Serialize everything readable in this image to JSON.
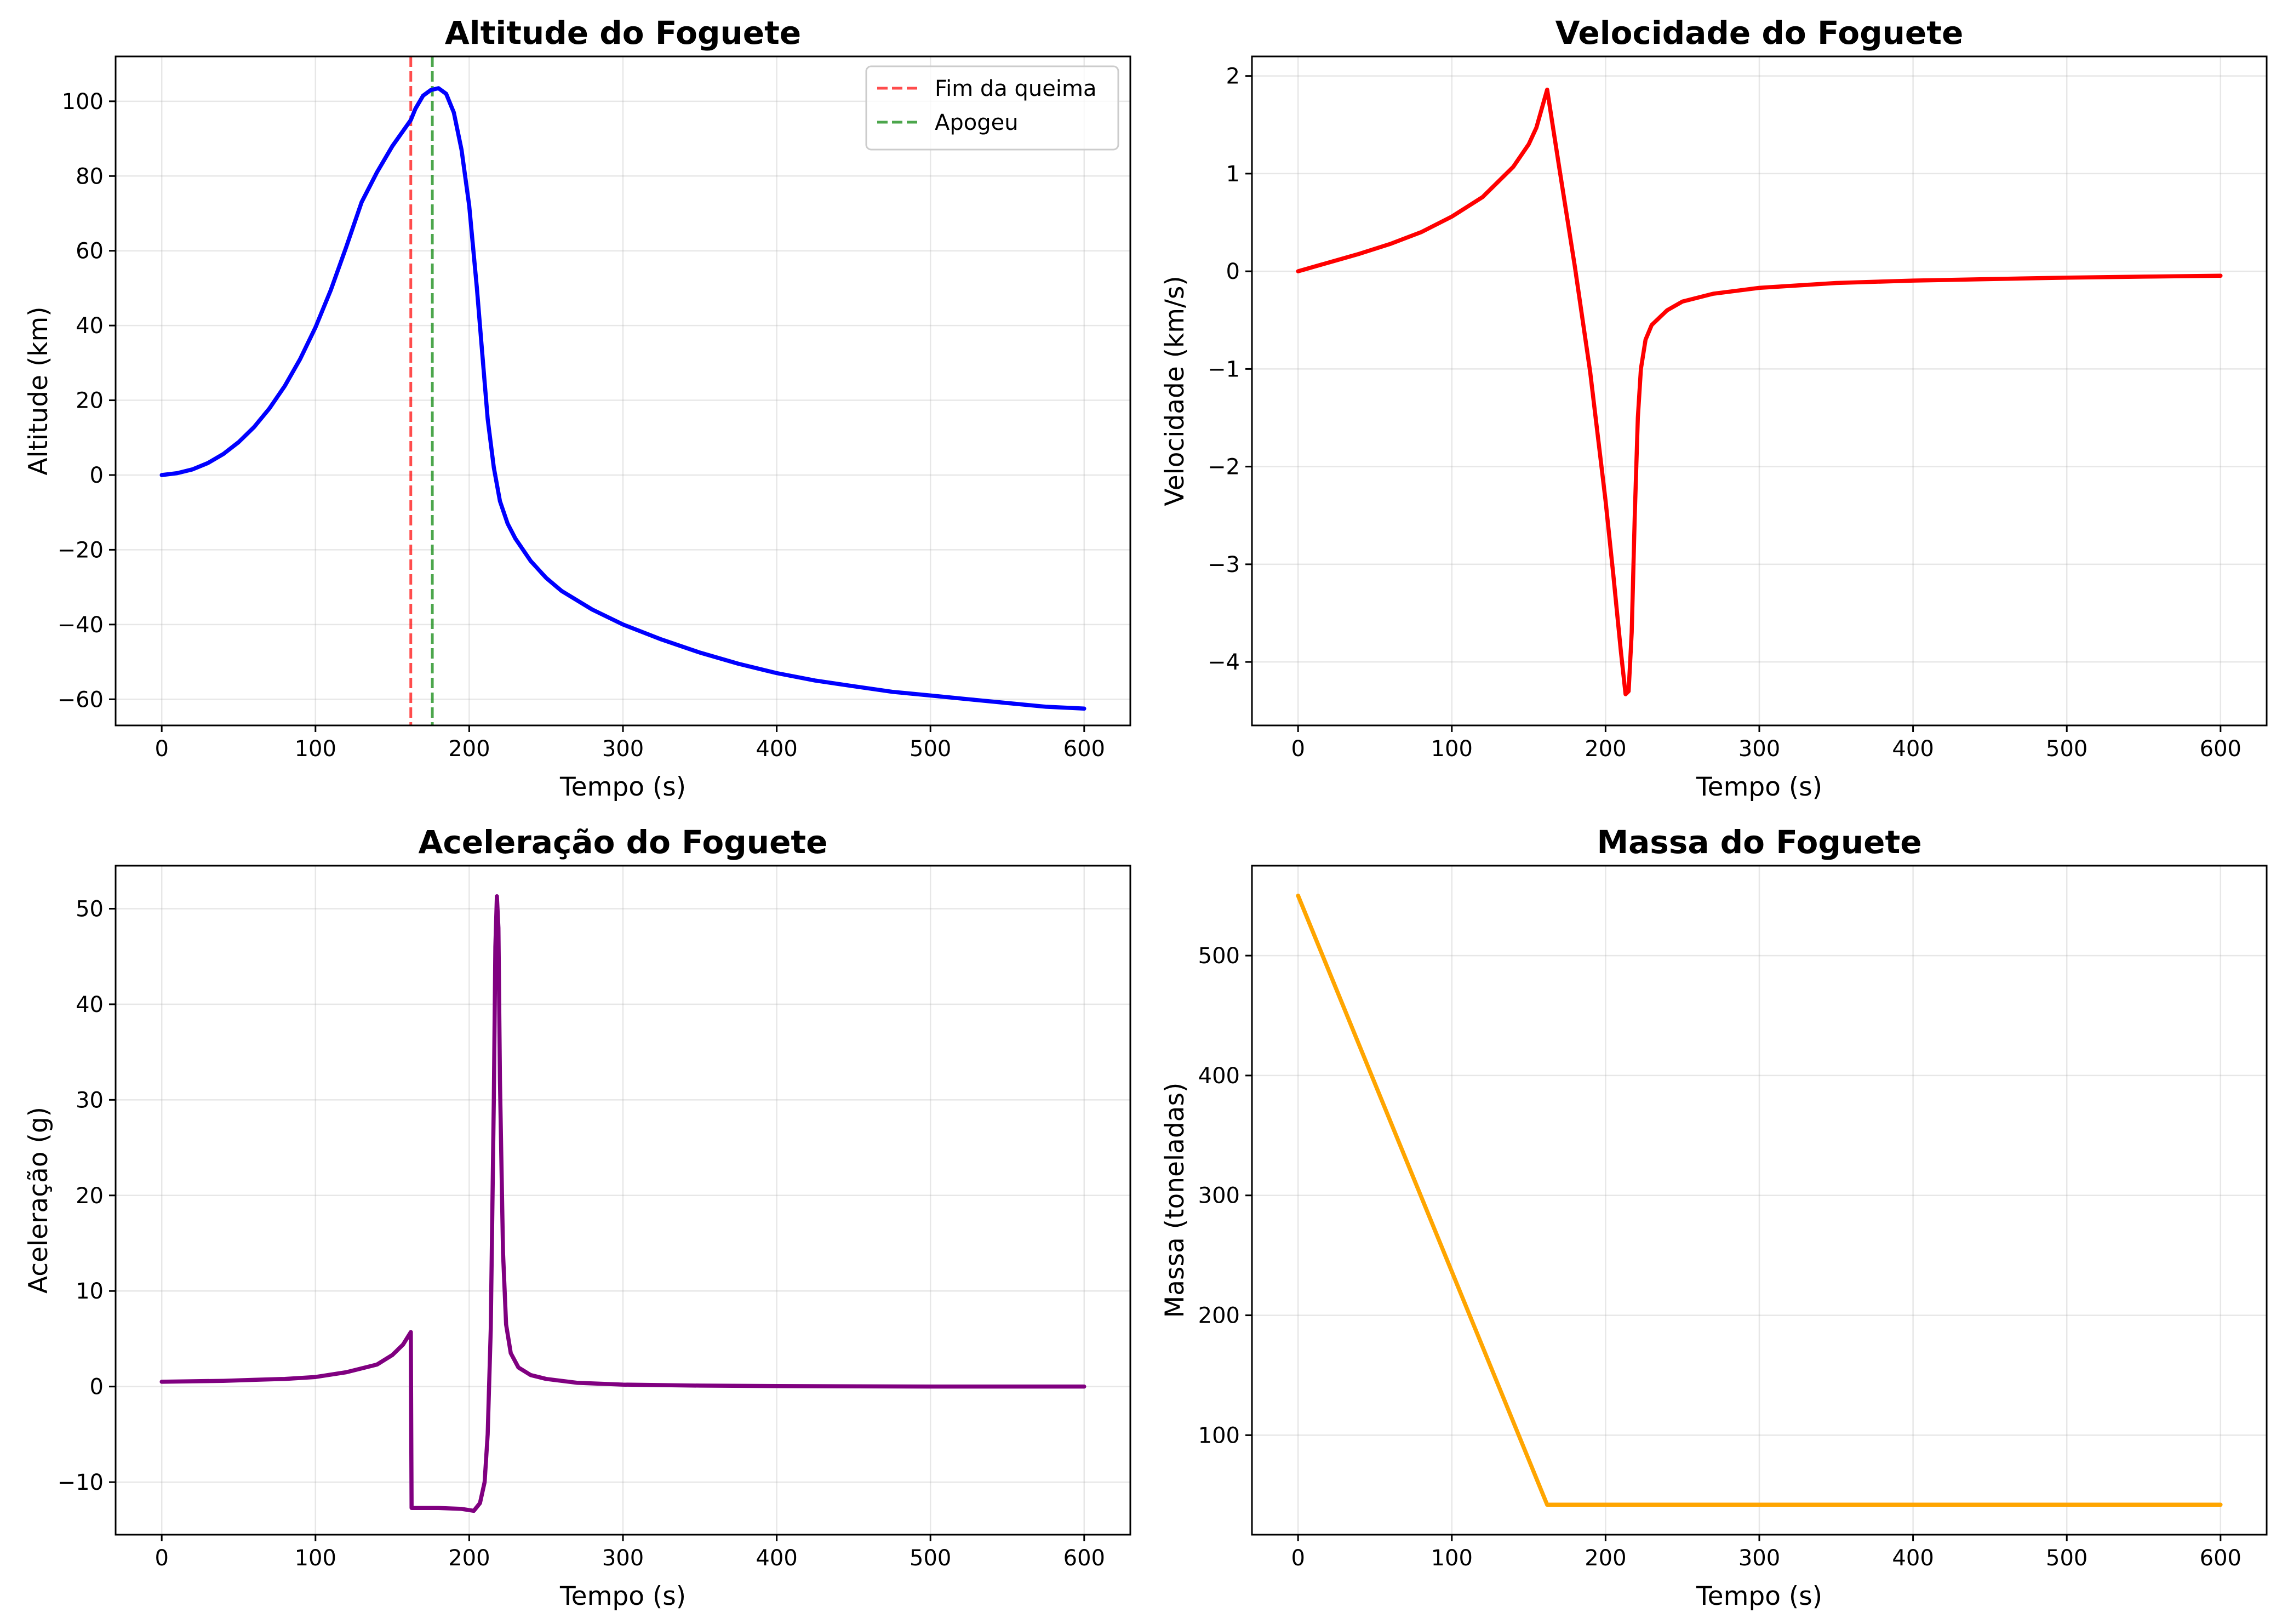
{
  "chart_data": [
    {
      "type": "line",
      "title": "Altitude do Foguete",
      "xlabel": "Tempo (s)",
      "ylabel": "Altitude (km)",
      "xlim": [
        -30,
        630
      ],
      "ylim": [
        -67,
        112
      ],
      "xticks": [
        0,
        100,
        200,
        300,
        400,
        500,
        600
      ],
      "xtick_labels": [
        "0",
        "100",
        "200",
        "300",
        "400",
        "500",
        "600"
      ],
      "yticks": [
        -60,
        -40,
        -20,
        0,
        20,
        40,
        60,
        80,
        100
      ],
      "ytick_labels": [
        "−60",
        "−40",
        "−20",
        "0",
        "20",
        "40",
        "60",
        "80",
        "100"
      ],
      "grid": true,
      "legend": "upper right",
      "series": [
        {
          "color": "#0000ff",
          "x": [
            0,
            10,
            20,
            30,
            40,
            50,
            60,
            70,
            80,
            90,
            100,
            110,
            120,
            130,
            140,
            150,
            162,
            165,
            170,
            175,
            180,
            185,
            190,
            195,
            200,
            205,
            208,
            212,
            216,
            220,
            225,
            230,
            240,
            250,
            260,
            280,
            300,
            325,
            350,
            375,
            400,
            425,
            450,
            475,
            500,
            525,
            550,
            575,
            600
          ],
          "y": [
            0,
            0.5,
            1.5,
            3.2,
            5.6,
            8.8,
            12.8,
            17.8,
            23.8,
            31,
            39.5,
            49.5,
            61,
            73,
            81,
            88,
            95,
            98,
            101.5,
            103,
            103.5,
            102,
            97,
            87,
            72,
            50,
            35,
            15,
            2,
            -7,
            -13,
            -17,
            -23,
            -27.5,
            -31,
            -36,
            -40,
            -44,
            -47.5,
            -50.5,
            -53,
            -55,
            -56.5,
            -58,
            -59,
            -60,
            -61,
            -62,
            -62.5
          ]
        }
      ],
      "vlines": [
        {
          "x": 162,
          "color": "#ff0000",
          "label": "Fim da queima"
        },
        {
          "x": 176,
          "color": "#008000",
          "label": "Apogeu"
        }
      ]
    },
    {
      "type": "line",
      "title": "Velocidade do Foguete",
      "xlabel": "Tempo (s)",
      "ylabel": "Velocidade (km/s)",
      "xlim": [
        -30,
        630
      ],
      "ylim": [
        -4.65,
        2.2
      ],
      "xticks": [
        0,
        100,
        200,
        300,
        400,
        500,
        600
      ],
      "xtick_labels": [
        "0",
        "100",
        "200",
        "300",
        "400",
        "500",
        "600"
      ],
      "yticks": [
        -4,
        -3,
        -2,
        -1,
        0,
        1,
        2
      ],
      "ytick_labels": [
        "−4",
        "−3",
        "−2",
        "−1",
        "0",
        "1",
        "2"
      ],
      "grid": true,
      "series": [
        {
          "color": "#ff0000",
          "x": [
            0,
            20,
            40,
            60,
            80,
            100,
            120,
            140,
            150,
            155,
            162,
            170,
            180,
            190,
            200,
            205,
            210,
            213,
            215,
            217,
            219,
            221,
            223,
            226,
            230,
            240,
            250,
            270,
            300,
            350,
            400,
            450,
            500,
            550,
            600
          ],
          "y": [
            0,
            0.09,
            0.18,
            0.28,
            0.4,
            0.56,
            0.76,
            1.07,
            1.3,
            1.47,
            1.86,
            1.05,
            0.05,
            -1.03,
            -2.35,
            -3.1,
            -3.9,
            -4.33,
            -4.3,
            -3.7,
            -2.5,
            -1.5,
            -1.0,
            -0.7,
            -0.55,
            -0.4,
            -0.31,
            -0.23,
            -0.17,
            -0.12,
            -0.095,
            -0.08,
            -0.065,
            -0.055,
            -0.045
          ]
        }
      ]
    },
    {
      "type": "line",
      "title": "Aceleração do Foguete",
      "xlabel": "Tempo (s)",
      "ylabel": "Aceleração (g)",
      "xlim": [
        -30,
        630
      ],
      "ylim": [
        -15.5,
        54.5
      ],
      "xticks": [
        0,
        100,
        200,
        300,
        400,
        500,
        600
      ],
      "xtick_labels": [
        "0",
        "100",
        "200",
        "300",
        "400",
        "500",
        "600"
      ],
      "yticks": [
        -10,
        0,
        10,
        20,
        30,
        40,
        50
      ],
      "ytick_labels": [
        "−10",
        "0",
        "10",
        "20",
        "30",
        "40",
        "50"
      ],
      "grid": true,
      "series": [
        {
          "color": "#800080",
          "x": [
            0,
            20,
            40,
            60,
            80,
            100,
            120,
            140,
            150,
            157,
            162,
            162.5,
            170,
            180,
            195,
            203,
            207,
            210,
            212,
            214,
            216,
            217,
            218,
            219,
            220,
            222,
            224,
            227,
            232,
            240,
            250,
            270,
            300,
            350,
            400,
            500,
            600
          ],
          "y": [
            0.5,
            0.55,
            0.6,
            0.7,
            0.8,
            1.0,
            1.5,
            2.3,
            3.3,
            4.4,
            5.7,
            -12.7,
            -12.7,
            -12.7,
            -12.8,
            -13.0,
            -12.2,
            -10.0,
            -5.0,
            6.0,
            30.0,
            46.0,
            51.3,
            48.0,
            32.0,
            14.0,
            6.5,
            3.5,
            2.0,
            1.2,
            0.8,
            0.4,
            0.2,
            0.1,
            0.05,
            0.0,
            0.0
          ]
        }
      ]
    },
    {
      "type": "line",
      "title": "Massa do Foguete",
      "xlabel": "Tempo (s)",
      "ylabel": "Massa (toneladas)",
      "xlim": [
        -30,
        630
      ],
      "ylim": [
        17,
        575
      ],
      "xticks": [
        0,
        100,
        200,
        300,
        400,
        500,
        600
      ],
      "xtick_labels": [
        "0",
        "100",
        "200",
        "300",
        "400",
        "500",
        "600"
      ],
      "yticks": [
        100,
        200,
        300,
        400,
        500
      ],
      "ytick_labels": [
        "100",
        "200",
        "300",
        "400",
        "500"
      ],
      "grid": true,
      "series": [
        {
          "color": "#ffa500",
          "x": [
            0,
            162,
            600
          ],
          "y": [
            550,
            42,
            42
          ]
        }
      ]
    }
  ]
}
